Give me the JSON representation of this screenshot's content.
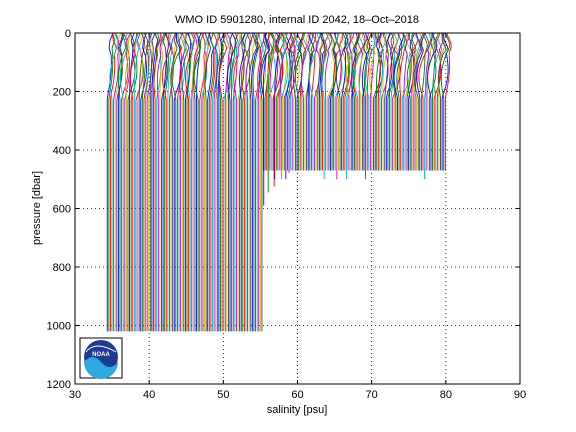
{
  "chart_data": {
    "type": "line",
    "title": "WMO ID 5901280, internal ID 2042, 18–Oct–2018",
    "xlabel": "salinity [psu]",
    "ylabel": "pressure [dbar]",
    "xlim": [
      30,
      90
    ],
    "ylim": [
      0,
      1200
    ],
    "y_reversed": true,
    "grid": true,
    "x_ticks": [
      "30",
      "40",
      "50",
      "60",
      "70",
      "80",
      "90"
    ],
    "y_ticks": [
      "0",
      "200",
      "400",
      "600",
      "800",
      "1000",
      "1200"
    ],
    "profiles": {
      "count": 213,
      "base_salinity_start": 34.5,
      "offset_step": 0.215,
      "surface_value_delta": 0.35,
      "surface_mixed_layer_depth": 60,
      "deep_value_delta": -0.15,
      "deep_profile_max_pressure": 1020,
      "shallow_profile_max_pressure": 470,
      "transition_profiles": [
        {
          "start_salinity": 55.6,
          "max_pressure": 590
        },
        {
          "start_salinity": 56.2,
          "max_pressure": 545
        },
        {
          "start_salinity": 57.0,
          "max_pressure": 525
        },
        {
          "start_salinity": 58.0,
          "max_pressure": 500
        },
        {
          "start_salinity": 59.0,
          "max_pressure": 478
        }
      ],
      "colors": [
        "#0000ff",
        "#008000",
        "#ff0000",
        "#00bfbf",
        "#bf00bf",
        "#bfbf00",
        "#404040"
      ]
    },
    "logo": {
      "text": "NOAA",
      "colors": [
        "#1f3a93",
        "#2ea8e0",
        "#ffffff"
      ]
    }
  }
}
